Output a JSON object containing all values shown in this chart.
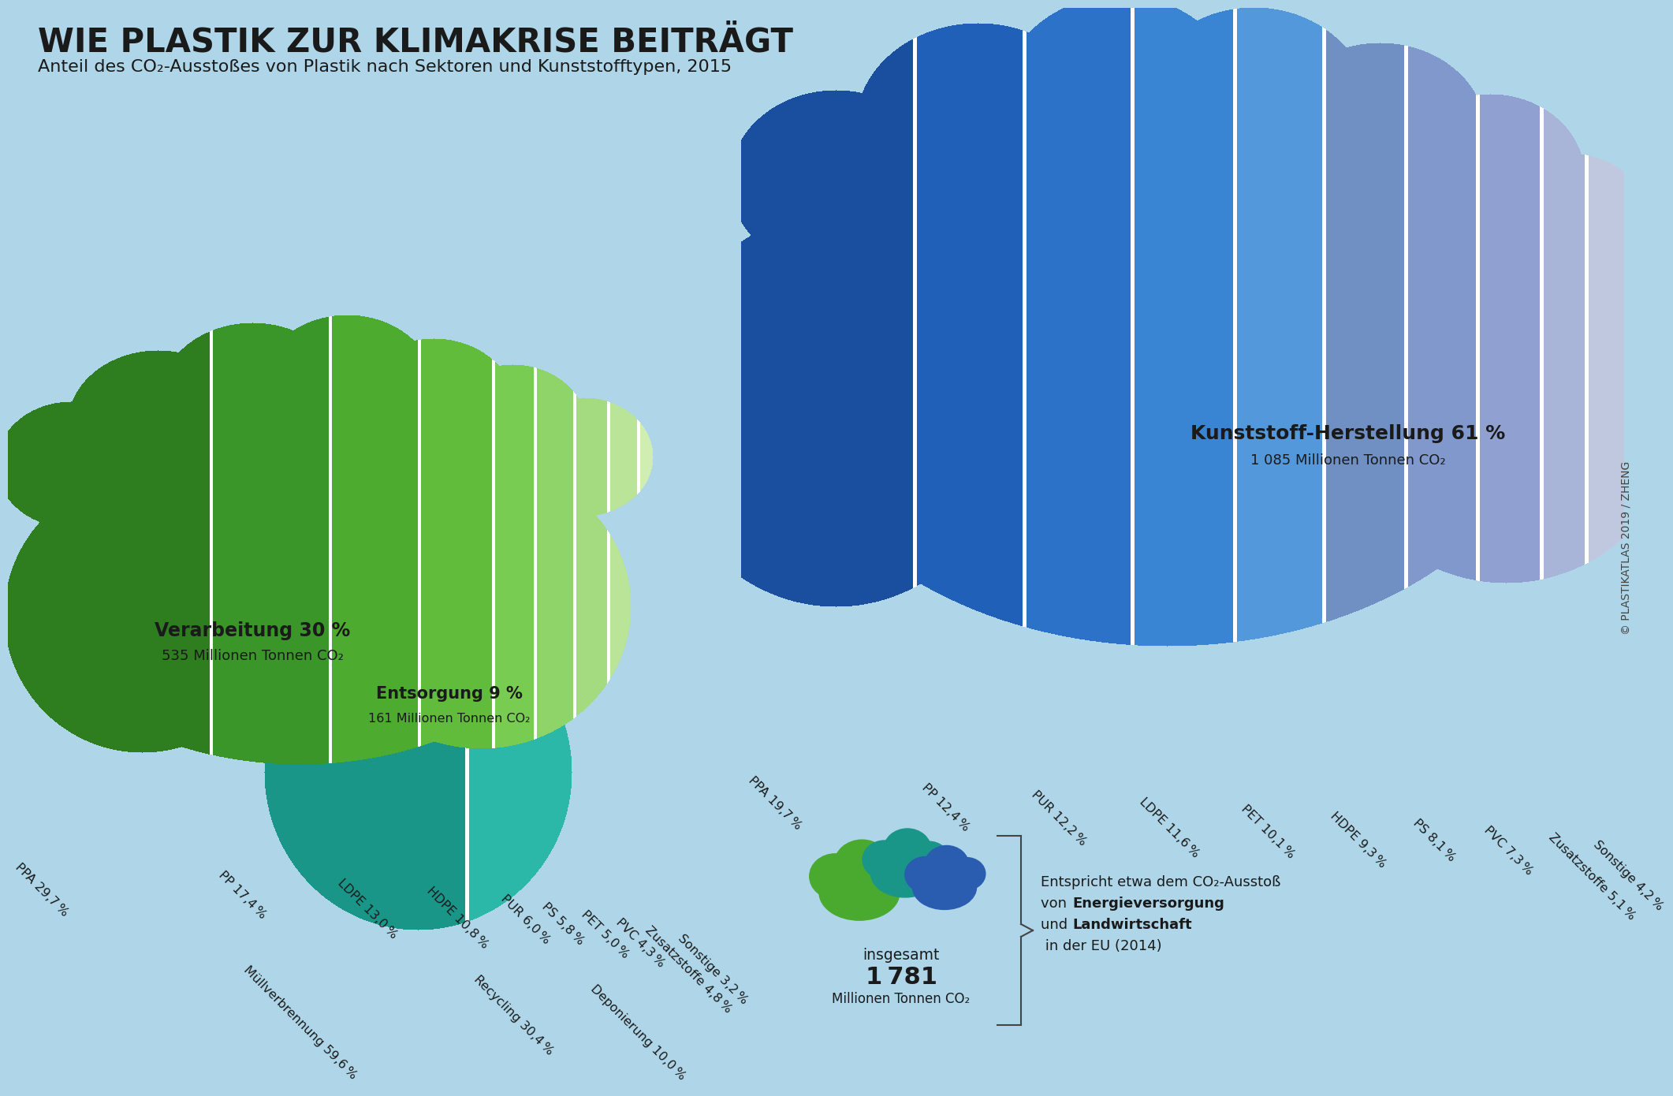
{
  "bg_color": "#aed6e8",
  "title": "WIE PLASTIK ZUR KLIMAKRISE BEITRÄGT",
  "subtitle": "Anteil des CO₂-Ausstoßes von Plastik nach Sektoren und Kunststofftypen, 2015",
  "credit": "© PLASTIKATLAS 2019 / ZHENG",
  "entsorgung": {
    "label": "Entsorgung 9 %",
    "sublabel": "161 Millionen Tonnen CO₂",
    "segments": [
      {
        "name": "Müllverbrennung",
        "value": 59.6,
        "color": "#1a9688"
      },
      {
        "name": "Recycling",
        "value": 30.4,
        "color": "#2cb8a8"
      },
      {
        "name": "Deponierung",
        "value": 10.0,
        "color": "#5dd0c4"
      }
    ]
  },
  "verarbeitung": {
    "label": "Verarbeitung 30 %",
    "sublabel": "535 Millionen Tonnen CO₂",
    "segments": [
      {
        "name": "PPA",
        "value": 29.7,
        "color": "#2e7d1e"
      },
      {
        "name": "PP",
        "value": 17.4,
        "color": "#3a9628"
      },
      {
        "name": "LDPE",
        "value": 13.0,
        "color": "#4dab30"
      },
      {
        "name": "HDPE",
        "value": 10.8,
        "color": "#62bc3c"
      },
      {
        "name": "PUR",
        "value": 6.0,
        "color": "#78cc52"
      },
      {
        "name": "PS",
        "value": 5.8,
        "color": "#8ed468"
      },
      {
        "name": "PET",
        "value": 5.0,
        "color": "#a4db80"
      },
      {
        "name": "PVC",
        "value": 4.3,
        "color": "#bae498"
      },
      {
        "name": "Zusatzstoffe",
        "value": 4.8,
        "color": "#d0edb2"
      },
      {
        "name": "Sonstige",
        "value": 3.2,
        "color": "#e2f4cc"
      }
    ]
  },
  "herstellung": {
    "label": "Kunststoff-Herstellung 61 %",
    "sublabel": "1 085 Millionen Tonnen CO₂",
    "segments": [
      {
        "name": "PPA",
        "value": 19.7,
        "color": "#1a4fa0"
      },
      {
        "name": "PP",
        "value": 12.4,
        "color": "#2060b8"
      },
      {
        "name": "PUR",
        "value": 12.2,
        "color": "#2c72c8"
      },
      {
        "name": "LDPE",
        "value": 11.6,
        "color": "#3a84d4"
      },
      {
        "name": "PET",
        "value": 10.1,
        "color": "#5498dc"
      },
      {
        "name": "HDPE",
        "value": 9.3,
        "color": "#7090c4"
      },
      {
        "name": "PS",
        "value": 8.1,
        "color": "#8098cc"
      },
      {
        "name": "PVC",
        "value": 7.3,
        "color": "#90a0d0"
      },
      {
        "name": "Zusatzstoffe",
        "value": 5.1,
        "color": "#a8b4d8"
      },
      {
        "name": "Sonstige",
        "value": 4.2,
        "color": "#c0c8e0"
      }
    ]
  }
}
